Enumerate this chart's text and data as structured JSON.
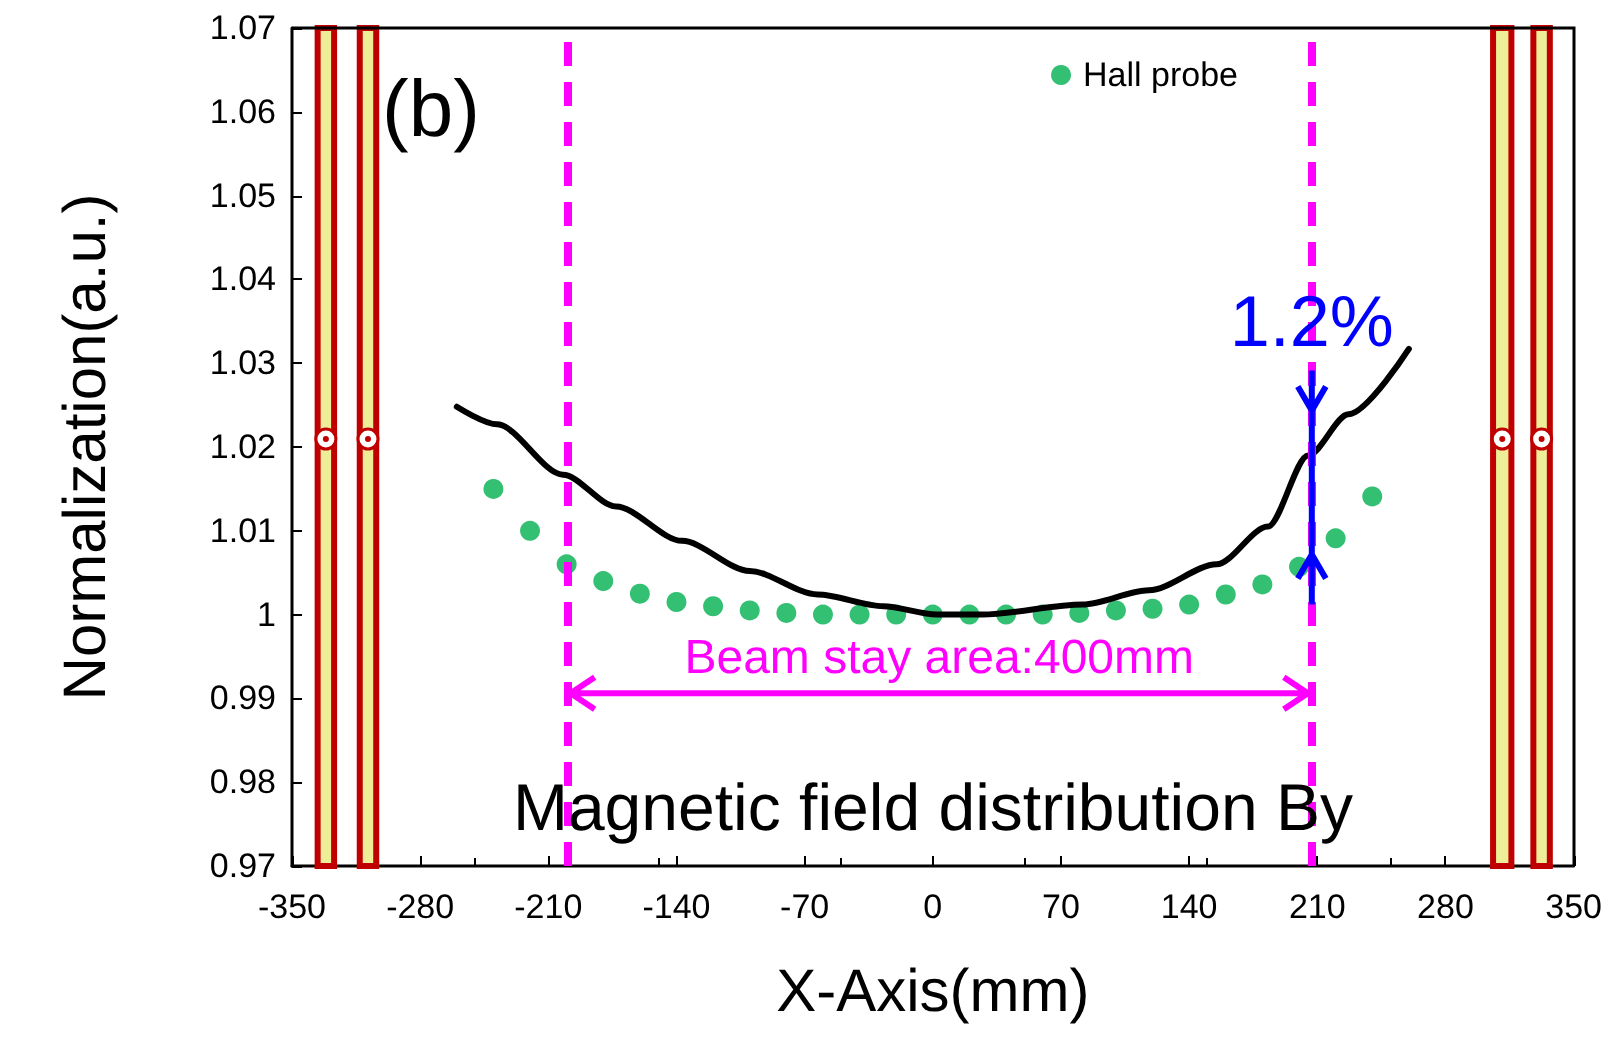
{
  "chart_data": {
    "type": "scatter",
    "title": "(b)",
    "xlabel": "X-Axis(mm)",
    "ylabel": "Normalization(a.u.)",
    "xlim": [
      -350,
      350
    ],
    "xticks": [
      -350,
      -280,
      -210,
      -140,
      -70,
      0,
      70,
      140,
      210,
      280,
      350
    ],
    "ylim": [
      0.97,
      1.07
    ],
    "yticks": [
      0.97,
      0.98,
      0.99,
      1,
      1.01,
      1.02,
      1.03,
      1.04,
      1.05,
      1.06,
      1.07
    ],
    "grid": false,
    "legend": "top right",
    "marker": "circle",
    "series": [
      {
        "name": "Hall probe",
        "color": "#00b050",
        "x": [
          -240,
          -220,
          -200,
          -180,
          -160,
          -140,
          -120,
          -100,
          -80,
          -60,
          -40,
          -20,
          0,
          20,
          40,
          60,
          80,
          100,
          120,
          140,
          160,
          180,
          200,
          220,
          240
        ],
        "values": [
          1.015,
          1.01,
          1.006,
          1.004,
          1.0025,
          1.0015,
          1.001,
          1.0005,
          1.0002,
          1.0,
          1.0,
          1.0,
          1.0,
          1.0,
          1.0,
          1.0,
          1.0002,
          1.0005,
          1.0007,
          1.0012,
          1.0024,
          1.0036,
          1.0057,
          1.0091,
          1.0141
        ]
      },
      {
        "type": "line",
        "color": "#000000",
        "marker": "none",
        "line_style": "solid",
        "x": [
          -260,
          -238,
          -202,
          -173,
          -137,
          -100,
          -63,
          -27,
          2,
          27,
          82,
          118,
          155,
          183,
          205,
          227,
          260
        ],
        "values": [
          1.0248,
          1.0227,
          1.0167,
          1.0129,
          1.0088,
          1.0052,
          1.0024,
          1.001,
          1.0,
          1.0,
          1.0012,
          1.0029,
          1.006,
          1.0105,
          1.019,
          1.0239,
          1.0317
        ]
      }
    ],
    "ref_lines": [
      {
        "axis": "x",
        "value": -200,
        "color": "#ff00ff",
        "line_style": "dashed"
      },
      {
        "axis": "x",
        "value": 207,
        "color": "#ff00ff",
        "line_style": "dashed"
      }
    ],
    "bands": [
      {
        "axis": "x",
        "from": -336,
        "to": -327,
        "color": "#eeee99"
      },
      {
        "axis": "x",
        "from": -313,
        "to": -304,
        "color": "#eeee99"
      },
      {
        "axis": "x",
        "from": 306,
        "to": 316,
        "color": "#eeee99"
      },
      {
        "axis": "x",
        "from": 328,
        "to": 337,
        "color": "#eeee99"
      }
    ],
    "annotations": [
      "Beam stay area:400mm",
      {
        "text": "1.2%",
        "x": 207,
        "y": 1.032
      },
      "Magnetic  field  distribution  By"
    ]
  }
}
